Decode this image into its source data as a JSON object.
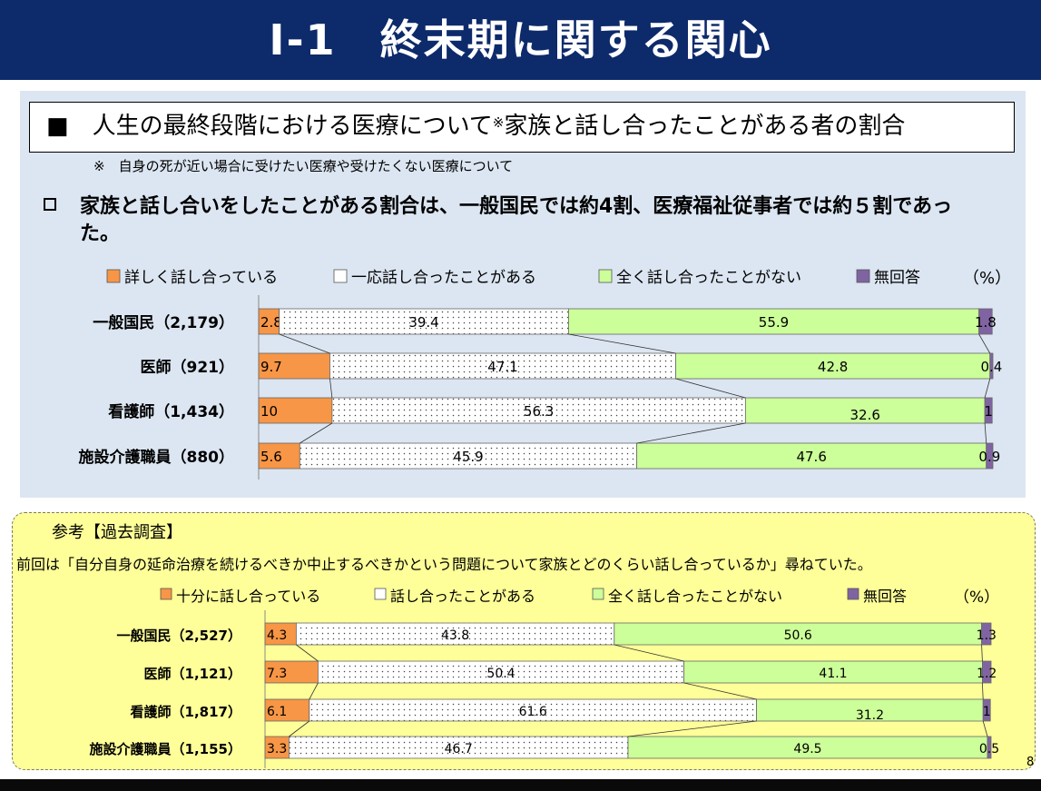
{
  "header": {
    "title": "Ⅰ-1　終末期に関する関心"
  },
  "section": {
    "title": "■　人生の最終段階における医療について",
    "title_mark": "※",
    "title_rest": "家族と話し合ったことがある者の割合",
    "note": "※　自身の死が近い場合に受けたい医療や受けたくない医療について",
    "summary": "家族と話し合いをしたことがある割合は、一般国民では約4割、医療福祉従事者では約５割であった。"
  },
  "reference": {
    "title": "参考【過去調査】",
    "note": "前回は「自分自身の延命治療を続けるべきか中止するべきかという問題について家族とどのくらい話し合っているか」尋ねていた。"
  },
  "page_number": "8",
  "colors": {
    "orange": "#f79646",
    "dotted": "#ffffff",
    "green": "#ccff99",
    "purple": "#8064a2",
    "header": "#0d2a6b"
  },
  "chart_data": [
    {
      "type": "bar",
      "stacked": true,
      "orientation": "horizontal",
      "unit_label": "（%）",
      "legend": [
        {
          "name": "詳しく話し合っている",
          "color": "#f79646"
        },
        {
          "name": "一応話し合ったことがある",
          "color": "#ffffff",
          "pattern": "dots"
        },
        {
          "name": "全く話し合ったことがない",
          "color": "#ccff99"
        },
        {
          "name": "無回答",
          "color": "#8064a2"
        }
      ],
      "categories": [
        "一般国民（2,179）",
        "医師（921）",
        "看護師（1,434）",
        "施設介護職員（880）"
      ],
      "series": [
        {
          "name": "詳しく話し合っている",
          "values": [
            2.8,
            9.7,
            10,
            5.6
          ],
          "labels": [
            "2.8",
            "9.7",
            "10",
            "5.6"
          ]
        },
        {
          "name": "一応話し合ったことがある",
          "values": [
            39.4,
            47.1,
            56.3,
            45.9
          ],
          "labels": [
            "39.4",
            "47.1",
            "56.3",
            "45.9"
          ]
        },
        {
          "name": "全く話し合ったことがない",
          "values": [
            55.9,
            42.8,
            32.6,
            47.6
          ],
          "labels": [
            "55.9",
            "42.8",
            "32.6",
            "47.6"
          ]
        },
        {
          "name": "無回答",
          "values": [
            1.8,
            0.4,
            1,
            0.9
          ],
          "labels": [
            "1.8",
            "0.4",
            "1",
            "0.9"
          ]
        }
      ]
    },
    {
      "type": "bar",
      "stacked": true,
      "orientation": "horizontal",
      "unit_label": "（%）",
      "legend": [
        {
          "name": "十分に話し合っている",
          "color": "#f79646"
        },
        {
          "name": "話し合ったことがある",
          "color": "#ffffff",
          "pattern": "dots"
        },
        {
          "name": "全く話し合ったことがない",
          "color": "#ccff99"
        },
        {
          "name": "無回答",
          "color": "#8064a2"
        }
      ],
      "categories": [
        "一般国民（2,527）",
        "医師（1,121）",
        "看護師（1,817）",
        "施設介護職員（1,155）"
      ],
      "series": [
        {
          "name": "十分に話し合っている",
          "values": [
            4.3,
            7.3,
            6.1,
            3.3
          ],
          "labels": [
            "4.3",
            "7.3",
            "6.1",
            "3.3"
          ]
        },
        {
          "name": "話し合ったことがある",
          "values": [
            43.8,
            50.4,
            61.6,
            46.7
          ],
          "labels": [
            "43.8",
            "50.4",
            "61.6",
            "46.7"
          ]
        },
        {
          "name": "全く話し合ったことがない",
          "values": [
            50.6,
            41.1,
            31.2,
            49.5
          ],
          "labels": [
            "50.6",
            "41.1",
            "31.2",
            "49.5"
          ]
        },
        {
          "name": "無回答",
          "values": [
            1.3,
            1.2,
            1,
            0.5
          ],
          "labels": [
            "1.3",
            "1.2",
            "1",
            "0.5"
          ]
        }
      ]
    }
  ]
}
